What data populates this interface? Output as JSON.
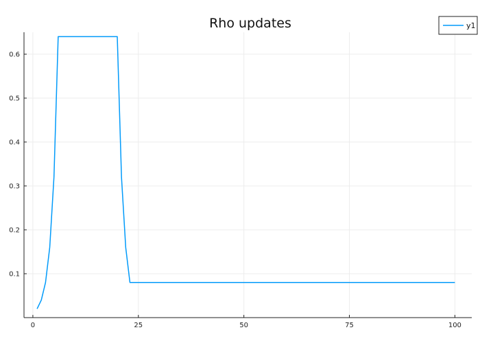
{
  "chart_data": {
    "type": "line",
    "title": "Rho updates",
    "xlabel": "",
    "ylabel": "",
    "xlim": [
      -2.1,
      104.0
    ],
    "ylim": [
      0.0,
      0.65
    ],
    "xticks": [
      0,
      25,
      50,
      75,
      100
    ],
    "yticks": [
      0.1,
      0.2,
      0.3,
      0.4,
      0.5,
      0.6
    ],
    "xtick_labels": [
      "0",
      "25",
      "50",
      "75",
      "100"
    ],
    "ytick_labels": [
      "0.1",
      "0.2",
      "0.3",
      "0.4",
      "0.5",
      "0.6"
    ],
    "grid": true,
    "legend_position": "top-right",
    "series": [
      {
        "name": "y1",
        "color": "#009AFA",
        "x": [
          1,
          2,
          3,
          4,
          5,
          6,
          20,
          21,
          22,
          23,
          100
        ],
        "y": [
          0.02,
          0.04,
          0.08,
          0.16,
          0.32,
          0.64,
          0.64,
          0.32,
          0.16,
          0.08,
          0.08
        ]
      }
    ]
  }
}
